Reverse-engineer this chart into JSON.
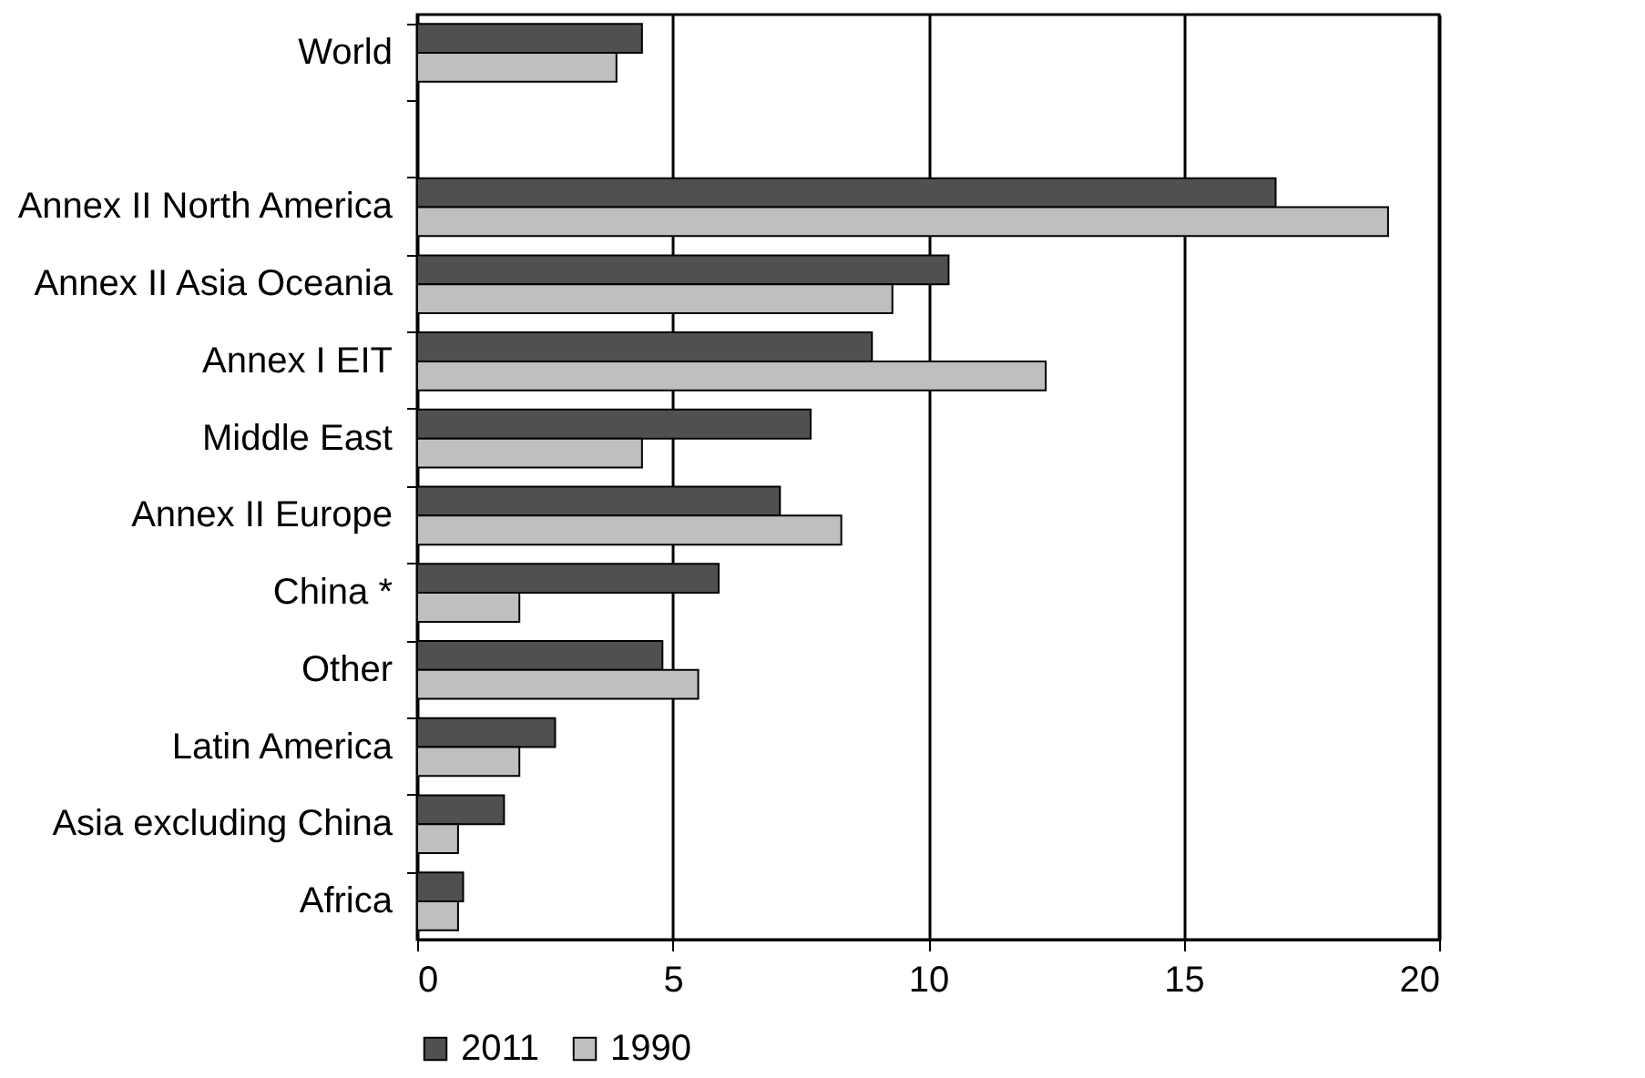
{
  "chart_data": {
    "type": "bar",
    "orientation": "horizontal",
    "categories": [
      "World",
      null,
      "Annex II North America",
      "Annex II Asia Oceania",
      "Annex I EIT",
      "Middle East",
      "Annex II Europe",
      "China *",
      "Other",
      "Latin America",
      "Asia excluding China",
      "Africa"
    ],
    "series": [
      {
        "name": "2011",
        "color": "#505050",
        "values": [
          4.4,
          null,
          16.8,
          10.4,
          8.9,
          7.7,
          7.1,
          5.9,
          4.8,
          2.7,
          1.7,
          0.9
        ]
      },
      {
        "name": "1990",
        "color": "#bfbfbf",
        "values": [
          3.9,
          null,
          19.0,
          9.3,
          12.3,
          4.4,
          8.3,
          2.0,
          5.5,
          2.0,
          0.8,
          0.8
        ]
      }
    ],
    "xlim": [
      0,
      20
    ],
    "xticks": [
      0,
      5,
      10,
      15,
      20
    ],
    "grid": "x",
    "legend": "bottom"
  }
}
